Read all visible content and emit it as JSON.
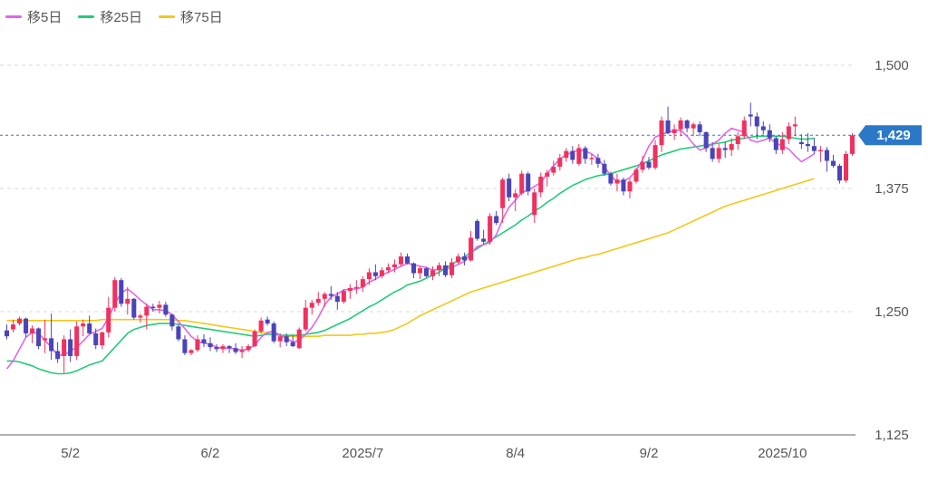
{
  "legend": [
    {
      "label": "移5日",
      "color": "#e066e8"
    },
    {
      "label": "移25日",
      "color": "#22cc77"
    },
    {
      "label": "移75日",
      "color": "#f2c81a"
    }
  ],
  "colors": {
    "up": "#f0315f",
    "down": "#4a44b8",
    "grid": "#d8d8d8",
    "current": "#2b78c7",
    "axis": "#666666"
  },
  "current_price": {
    "label": "1,429",
    "value": 1429
  },
  "chart_data": {
    "type": "candlestick",
    "title": "",
    "ylim": [
      1125,
      1525
    ],
    "y_ticks": [
      {
        "label": "1,500",
        "value": 1500
      },
      {
        "label": "1,375",
        "value": 1375
      },
      {
        "label": "1,250",
        "value": 1250
      },
      {
        "label": "1,125",
        "value": 1125
      }
    ],
    "x_ticks": [
      {
        "label": "5/2",
        "index": 10
      },
      {
        "label": "6/2",
        "index": 32
      },
      {
        "label": "2025/7",
        "index": 56
      },
      {
        "label": "8/4",
        "index": 80
      },
      {
        "label": "9/2",
        "index": 101
      },
      {
        "label": "2025/10",
        "index": 122
      }
    ],
    "candles": [
      [
        1231,
        1237,
        1222,
        1225
      ],
      [
        1232,
        1242,
        1229,
        1237
      ],
      [
        1238,
        1245,
        1236,
        1243
      ],
      [
        1243,
        1244,
        1224,
        1228
      ],
      [
        1228,
        1236,
        1218,
        1233
      ],
      [
        1233,
        1234,
        1212,
        1215
      ],
      [
        1221,
        1242,
        1208,
        1223
      ],
      [
        1223,
        1248,
        1201,
        1210
      ],
      [
        1210,
        1219,
        1198,
        1202
      ],
      [
        1205,
        1226,
        1188,
        1222
      ],
      [
        1222,
        1232,
        1199,
        1205
      ],
      [
        1205,
        1240,
        1201,
        1235
      ],
      [
        1235,
        1242,
        1225,
        1238
      ],
      [
        1238,
        1246,
        1227,
        1228
      ],
      [
        1228,
        1233,
        1212,
        1216
      ],
      [
        1216,
        1230,
        1212,
        1229
      ],
      [
        1229,
        1265,
        1224,
        1254
      ],
      [
        1254,
        1285,
        1250,
        1282
      ],
      [
        1282,
        1284,
        1255,
        1258
      ],
      [
        1258,
        1275,
        1247,
        1263
      ],
      [
        1263,
        1264,
        1242,
        1244
      ],
      [
        1244,
        1248,
        1239,
        1246
      ],
      [
        1246,
        1258,
        1232,
        1255
      ],
      [
        1255,
        1258,
        1250,
        1254
      ],
      [
        1254,
        1261,
        1248,
        1257
      ],
      [
        1257,
        1260,
        1245,
        1247
      ],
      [
        1247,
        1248,
        1231,
        1235
      ],
      [
        1235,
        1237,
        1220,
        1222
      ],
      [
        1222,
        1226,
        1206,
        1208
      ],
      [
        1208,
        1212,
        1206,
        1211
      ],
      [
        1211,
        1226,
        1209,
        1222
      ],
      [
        1222,
        1227,
        1214,
        1218
      ],
      [
        1218,
        1224,
        1210,
        1214
      ],
      [
        1214,
        1217,
        1209,
        1212
      ],
      [
        1212,
        1217,
        1208,
        1215
      ],
      [
        1215,
        1216,
        1208,
        1213
      ],
      [
        1213,
        1218,
        1207,
        1209
      ],
      [
        1209,
        1215,
        1203,
        1211
      ],
      [
        1211,
        1217,
        1209,
        1215
      ],
      [
        1215,
        1232,
        1214,
        1230
      ],
      [
        1230,
        1244,
        1228,
        1241
      ],
      [
        1242,
        1245,
        1236,
        1238
      ],
      [
        1238,
        1240,
        1218,
        1220
      ],
      [
        1220,
        1228,
        1214,
        1225
      ],
      [
        1225,
        1228,
        1215,
        1219
      ],
      [
        1219,
        1226,
        1214,
        1215
      ],
      [
        1213,
        1234,
        1212,
        1232
      ],
      [
        1232,
        1262,
        1230,
        1254
      ],
      [
        1254,
        1262,
        1247,
        1259
      ],
      [
        1259,
        1270,
        1256,
        1263
      ],
      [
        1263,
        1270,
        1255,
        1268
      ],
      [
        1268,
        1276,
        1262,
        1266
      ],
      [
        1266,
        1270,
        1252,
        1260
      ],
      [
        1260,
        1273,
        1258,
        1271
      ],
      [
        1271,
        1278,
        1263,
        1274
      ],
      [
        1274,
        1282,
        1268,
        1275
      ],
      [
        1275,
        1286,
        1270,
        1283
      ],
      [
        1283,
        1294,
        1277,
        1290
      ],
      [
        1290,
        1298,
        1282,
        1286
      ],
      [
        1286,
        1295,
        1284,
        1292
      ],
      [
        1292,
        1299,
        1289,
        1295
      ],
      [
        1295,
        1303,
        1290,
        1298
      ],
      [
        1298,
        1310,
        1296,
        1306
      ],
      [
        1306,
        1309,
        1298,
        1299
      ],
      [
        1299,
        1300,
        1284,
        1289
      ],
      [
        1289,
        1296,
        1283,
        1294
      ],
      [
        1294,
        1295,
        1285,
        1286
      ],
      [
        1286,
        1296,
        1282,
        1292
      ],
      [
        1292,
        1300,
        1286,
        1297
      ],
      [
        1297,
        1301,
        1285,
        1287
      ],
      [
        1287,
        1304,
        1284,
        1300
      ],
      [
        1300,
        1309,
        1298,
        1306
      ],
      [
        1306,
        1310,
        1297,
        1302
      ],
      [
        1302,
        1332,
        1301,
        1325
      ],
      [
        1342,
        1344,
        1322,
        1324
      ],
      [
        1324,
        1333,
        1318,
        1321
      ],
      [
        1321,
        1350,
        1318,
        1347
      ],
      [
        1347,
        1352,
        1338,
        1340
      ],
      [
        1355,
        1386,
        1340,
        1384
      ],
      [
        1385,
        1390,
        1362,
        1366
      ],
      [
        1366,
        1374,
        1352,
        1370
      ],
      [
        1370,
        1393,
        1368,
        1390
      ],
      [
        1390,
        1392,
        1368,
        1372
      ],
      [
        1348,
        1375,
        1340,
        1371
      ],
      [
        1371,
        1391,
        1366,
        1387
      ],
      [
        1387,
        1394,
        1377,
        1391
      ],
      [
        1391,
        1403,
        1388,
        1397
      ],
      [
        1397,
        1410,
        1393,
        1406
      ],
      [
        1406,
        1416,
        1402,
        1413
      ],
      [
        1413,
        1418,
        1400,
        1404
      ],
      [
        1400,
        1420,
        1398,
        1416
      ],
      [
        1416,
        1418,
        1400,
        1405
      ],
      [
        1405,
        1410,
        1399,
        1406
      ],
      [
        1406,
        1410,
        1396,
        1400
      ],
      [
        1400,
        1404,
        1388,
        1390
      ],
      [
        1390,
        1392,
        1378,
        1380
      ],
      [
        1380,
        1390,
        1372,
        1384
      ],
      [
        1384,
        1386,
        1368,
        1372
      ],
      [
        1372,
        1385,
        1365,
        1382
      ],
      [
        1382,
        1396,
        1380,
        1394
      ],
      [
        1394,
        1408,
        1391,
        1402
      ],
      [
        1402,
        1407,
        1394,
        1396
      ],
      [
        1396,
        1424,
        1394,
        1419
      ],
      [
        1419,
        1448,
        1412,
        1444
      ],
      [
        1444,
        1458,
        1430,
        1431
      ],
      [
        1431,
        1440,
        1424,
        1435
      ],
      [
        1435,
        1447,
        1428,
        1444
      ],
      [
        1444,
        1445,
        1432,
        1436
      ],
      [
        1436,
        1442,
        1428,
        1440
      ],
      [
        1440,
        1443,
        1428,
        1432
      ],
      [
        1432,
        1433,
        1412,
        1416
      ],
      [
        1416,
        1422,
        1402,
        1405
      ],
      [
        1405,
        1420,
        1401,
        1416
      ],
      [
        1416,
        1422,
        1406,
        1414
      ],
      [
        1414,
        1426,
        1408,
        1420
      ],
      [
        1420,
        1432,
        1414,
        1428
      ],
      [
        1428,
        1448,
        1425,
        1444
      ],
      [
        1450,
        1462,
        1438,
        1448
      ],
      [
        1448,
        1452,
        1425,
        1438
      ],
      [
        1438,
        1443,
        1430,
        1434
      ],
      [
        1434,
        1440,
        1422,
        1426
      ],
      [
        1426,
        1428,
        1410,
        1414
      ],
      [
        1414,
        1432,
        1410,
        1425
      ],
      [
        1425,
        1442,
        1420,
        1438
      ],
      [
        1438,
        1448,
        1428,
        1440
      ],
      [
        1422,
        1430,
        1415,
        1420
      ],
      [
        1420,
        1431,
        1412,
        1418
      ],
      [
        1418,
        1426,
        1410,
        1413
      ],
      [
        1413,
        1418,
        1402,
        1414
      ],
      [
        1414,
        1417,
        1392,
        1403
      ],
      [
        1403,
        1409,
        1396,
        1398
      ],
      [
        1398,
        1400,
        1380,
        1383
      ],
      [
        1383,
        1413,
        1381,
        1410
      ],
      [
        1410,
        1431,
        1408,
        1429
      ]
    ],
    "series": [
      {
        "name": "移5日",
        "values": [
          1192,
          1200,
          1212,
          1224,
          1229,
          1228,
          1221,
          1214,
          1206,
          1206,
          1210,
          1214,
          1220,
          1227,
          1230,
          1233,
          1244,
          1258,
          1269,
          1273,
          1268,
          1262,
          1257,
          1252,
          1252,
          1251,
          1247,
          1240,
          1233,
          1225,
          1220,
          1218,
          1217,
          1214,
          1213,
          1213,
          1212,
          1211,
          1212,
          1216,
          1224,
          1229,
          1230,
          1226,
          1223,
          1219,
          1221,
          1227,
          1234,
          1244,
          1257,
          1265,
          1268,
          1272,
          1273,
          1273,
          1275,
          1280,
          1283,
          1287,
          1290,
          1293,
          1296,
          1299,
          1298,
          1296,
          1295,
          1292,
          1293,
          1293,
          1295,
          1298,
          1301,
          1309,
          1316,
          1318,
          1320,
          1328,
          1344,
          1356,
          1363,
          1371,
          1373,
          1377,
          1381,
          1390,
          1398,
          1405,
          1409,
          1412,
          1414,
          1413,
          1410,
          1405,
          1397,
          1388,
          1382,
          1382,
          1386,
          1393,
          1404,
          1418,
          1427,
          1430,
          1432,
          1434,
          1434,
          1428,
          1420,
          1414,
          1416,
          1420,
          1424,
          1431,
          1436,
          1434,
          1432,
          1424,
          1422,
          1424,
          1426,
          1421,
          1418,
          1415,
          1408,
          1402,
          1406,
          1410
        ]
      },
      {
        "name": "移25日",
        "values": [
          1200,
          1200,
          1199,
          1197,
          1195,
          1192,
          1190,
          1188,
          1187,
          1187,
          1188,
          1190,
          1193,
          1196,
          1198,
          1200,
          1207,
          1214,
          1221,
          1228,
          1232,
          1234,
          1236,
          1237,
          1238,
          1238,
          1238,
          1237,
          1236,
          1235,
          1234,
          1233,
          1232,
          1231,
          1230,
          1229,
          1228,
          1227,
          1226,
          1225,
          1226,
          1227,
          1227,
          1226,
          1226,
          1226,
          1226,
          1227,
          1228,
          1229,
          1231,
          1234,
          1237,
          1240,
          1243,
          1247,
          1251,
          1255,
          1258,
          1262,
          1266,
          1270,
          1273,
          1277,
          1279,
          1281,
          1284,
          1287,
          1290,
          1294,
          1298,
          1302,
          1306,
          1310,
          1314,
          1318,
          1322,
          1326,
          1330,
          1334,
          1338,
          1343,
          1347,
          1352,
          1356,
          1361,
          1365,
          1370,
          1374,
          1378,
          1381,
          1384,
          1386,
          1388,
          1389,
          1390,
          1392,
          1394,
          1396,
          1398,
          1400,
          1403,
          1406,
          1409,
          1411,
          1413,
          1415,
          1416,
          1417,
          1418,
          1419,
          1420,
          1421,
          1422,
          1424,
          1425,
          1426,
          1427,
          1428,
          1428,
          1428,
          1428,
          1428,
          1427,
          1426,
          1425,
          1425,
          1426
        ]
      },
      {
        "name": "移75日",
        "values": [
          1241,
          1241,
          1241,
          1241,
          1241,
          1241,
          1241,
          1241,
          1241,
          1241,
          1241,
          1241,
          1241,
          1241,
          1241,
          1242,
          1242,
          1242,
          1242,
          1242,
          1242,
          1242,
          1242,
          1242,
          1242,
          1242,
          1242,
          1241,
          1241,
          1240,
          1239,
          1238,
          1237,
          1236,
          1235,
          1234,
          1233,
          1232,
          1231,
          1230,
          1229,
          1228,
          1227,
          1226,
          1225,
          1225,
          1225,
          1225,
          1225,
          1225,
          1226,
          1226,
          1226,
          1226,
          1226,
          1227,
          1227,
          1228,
          1228,
          1229,
          1230,
          1232,
          1235,
          1238,
          1242,
          1246,
          1249,
          1252,
          1255,
          1258,
          1261,
          1264,
          1267,
          1270,
          1272,
          1274,
          1276,
          1278,
          1280,
          1282,
          1284,
          1286,
          1288,
          1290,
          1292,
          1294,
          1296,
          1298,
          1300,
          1302,
          1304,
          1305,
          1307,
          1308,
          1310,
          1312,
          1314,
          1316,
          1318,
          1320,
          1322,
          1324,
          1326,
          1328,
          1330,
          1333,
          1336,
          1339,
          1342,
          1345,
          1348,
          1351,
          1354,
          1357,
          1359,
          1361,
          1363,
          1365,
          1367,
          1369,
          1371,
          1373,
          1375,
          1377,
          1379,
          1381,
          1383,
          1385
        ]
      }
    ]
  }
}
